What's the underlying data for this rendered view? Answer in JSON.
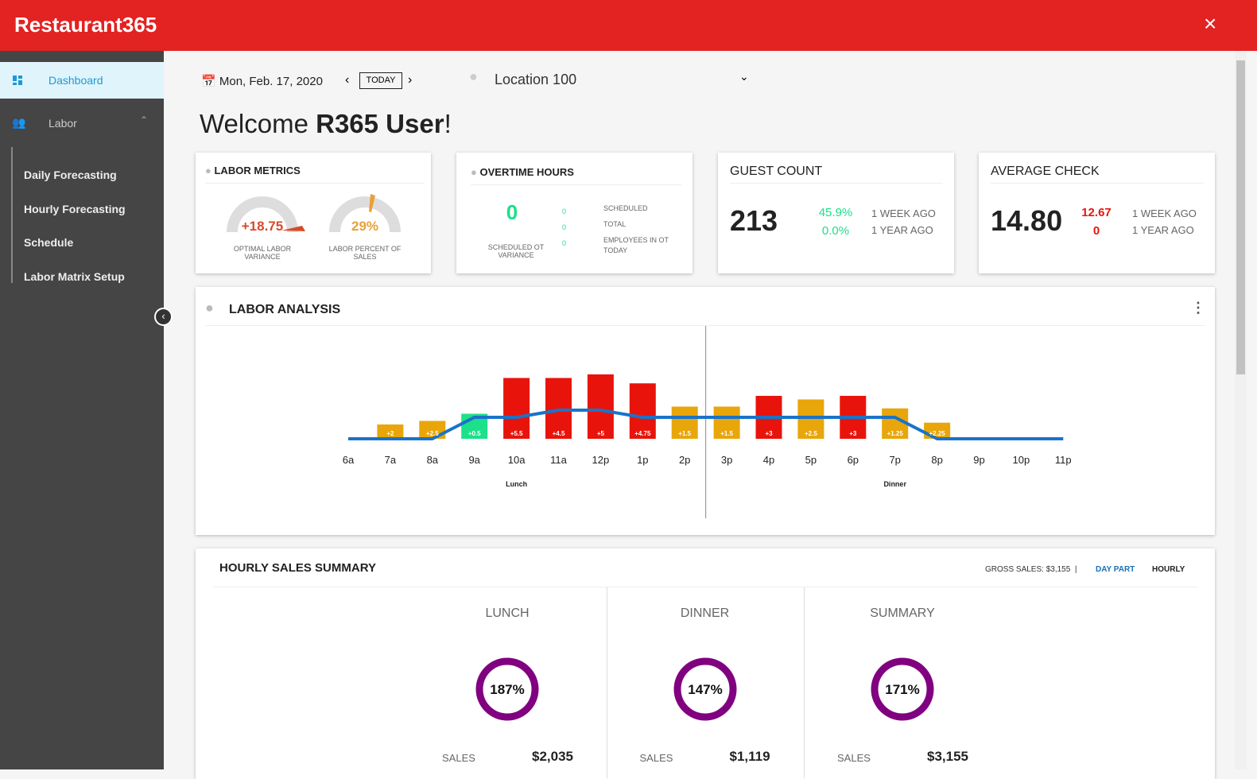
{
  "header": {
    "brand": "Restaurant365"
  },
  "sidebar": {
    "items": [
      "Dashboard",
      "Labor"
    ],
    "subitems": [
      "Daily Forecasting",
      "Hourly Forecasting",
      "Schedule",
      "Labor Matrix Setup"
    ]
  },
  "toolbar": {
    "date": "Mon, Feb. 17, 2020",
    "today": "TODAY",
    "location": "Location 100"
  },
  "welcome": {
    "prefix": "Welcome",
    "user": "R365 User",
    "suffix": "!"
  },
  "labor_metrics": {
    "title": "LABOR METRICS",
    "gauges": [
      {
        "value": "+18.75",
        "label": "OPTIMAL LABOR VARIANCE"
      },
      {
        "value": "29%",
        "label": "LABOR PERCENT OF SALES"
      }
    ]
  },
  "overtime": {
    "title": "OVERTIME HOURS",
    "value": "0",
    "value_label": "SCHEDULED OT VARIANCE",
    "rows": [
      {
        "value": "0",
        "label": "SCHEDULED"
      },
      {
        "value": "0",
        "label": "TOTAL"
      },
      {
        "value": "0",
        "label": "EMPLOYEES IN OT TODAY"
      }
    ]
  },
  "guest_count": {
    "title": "GUEST COUNT",
    "value": "213",
    "rows": [
      {
        "value": "45.9%",
        "label": "1 WEEK AGO"
      },
      {
        "value": "0.0%",
        "label": "1 YEAR AGO"
      }
    ]
  },
  "average_check": {
    "title": "AVERAGE CHECK",
    "value": "14.80",
    "rows": [
      {
        "value": "12.67",
        "label": "1 WEEK AGO"
      },
      {
        "value": "0",
        "label": "1 YEAR AGO"
      }
    ]
  },
  "chart_data": {
    "type": "bar",
    "title": "LABOR ANALYSIS",
    "categories": [
      "6a",
      "7a",
      "8a",
      "9a",
      "10a",
      "11a",
      "12p",
      "1p",
      "2p",
      "3p",
      "4p",
      "5p",
      "6p",
      "7p",
      "8p",
      "9p",
      "10p",
      "11p"
    ],
    "values": [
      null,
      2,
      2.5,
      3.5,
      8.5,
      8.5,
      9,
      7.75,
      4.5,
      4.5,
      6,
      5.5,
      6,
      4.25,
      2.25,
      null,
      null,
      null
    ],
    "bar_colors": [
      null,
      "#e8a60a",
      "#e8a60a",
      "#1de08a",
      "#e8140c",
      "#e8140c",
      "#e8140c",
      "#e8140c",
      "#e8a60a",
      "#e8a60a",
      "#e8140c",
      "#e8a60a",
      "#e8140c",
      "#e8a60a",
      "#e8a60a",
      null,
      null,
      null
    ],
    "line": {
      "color": "#1a73c8",
      "values": [
        0,
        0,
        0,
        3,
        3,
        4,
        4,
        3,
        3,
        3,
        3,
        3,
        3,
        3,
        0,
        0,
        0,
        0
      ]
    },
    "variance": {
      "values": [
        null,
        2,
        2.5,
        0.5,
        5.5,
        4.5,
        5,
        4.75,
        1.5,
        1.5,
        3,
        2.5,
        3,
        1.25,
        2.25,
        null,
        null,
        null
      ],
      "value_labels": [
        null,
        "+2",
        "+2.5",
        "+0.5",
        "+5.5",
        "+4.5",
        "+5",
        "+4.75",
        "+1.5",
        "+1.5",
        "+3",
        "+2.5",
        "+3",
        "+1.25",
        "+2.25",
        null,
        null,
        null
      ]
    },
    "periods": [
      "Lunch",
      "Dinner"
    ],
    "ylim": [
      0,
      10
    ]
  },
  "sales_summary": {
    "title": "HOURLY SALES SUMMARY",
    "gross_sales": "GROSS SALES: $3,155",
    "tabs": [
      "DAY PART",
      "HOURLY"
    ],
    "columns": [
      {
        "title": "LUNCH",
        "percent": "187%",
        "sales_label": "SALES",
        "sales": "$2,035"
      },
      {
        "title": "DINNER",
        "percent": "147%",
        "sales_label": "SALES",
        "sales": "$1,119"
      },
      {
        "title": "SUMMARY",
        "percent": "171%",
        "sales_label": "SALES",
        "sales": "$3,155"
      }
    ]
  }
}
